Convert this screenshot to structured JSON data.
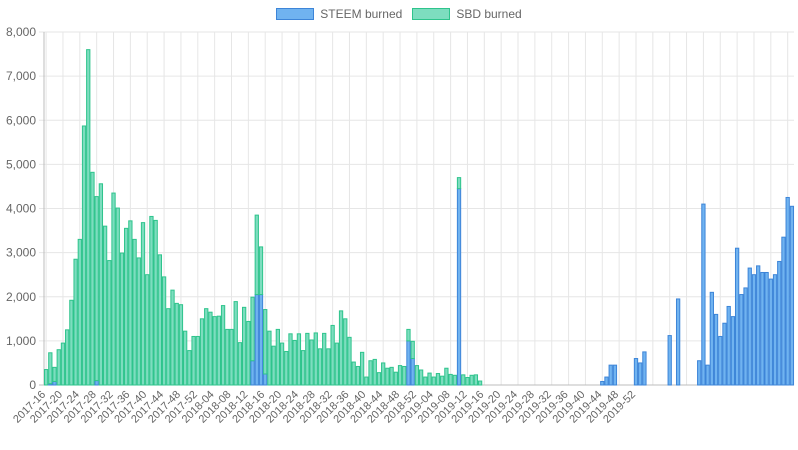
{
  "chart_data": {
    "type": "bar",
    "stacked": true,
    "ylim": [
      0,
      8000
    ],
    "y_ticks": [
      "0",
      "1,000",
      "2,000",
      "3,000",
      "4,000",
      "5,000",
      "6,000",
      "7,000",
      "8,000"
    ],
    "grid": true,
    "legend_position": "top-center",
    "x_tick_labels": [
      "2017-16",
      "2017-20",
      "2017-24",
      "2017-28",
      "2017-32",
      "2017-36",
      "2017-40",
      "2017-44",
      "2017-48",
      "2017-52",
      "2018-04",
      "2018-08",
      "2018-12",
      "2018-16",
      "2018-20",
      "2018-24",
      "2018-28",
      "2018-32",
      "2018-36",
      "2018-40",
      "2018-44",
      "2018-48",
      "2018-52",
      "2019-04",
      "2019-08",
      "2019-12",
      "2019-16",
      "2019-20",
      "2019-24",
      "2019-28",
      "2019-32",
      "2019-36",
      "2019-40",
      "2019-44",
      "2019-48",
      "2019-52"
    ],
    "series": [
      {
        "name": "STEEM burned",
        "color": "#70b3f0",
        "border": "#3d85d8",
        "values": [
          0,
          30,
          80,
          0,
          0,
          0,
          0,
          0,
          0,
          0,
          0,
          0,
          100,
          0,
          0,
          0,
          0,
          0,
          0,
          0,
          0,
          0,
          0,
          0,
          0,
          0,
          0,
          0,
          0,
          0,
          0,
          0,
          0,
          0,
          0,
          0,
          0,
          0,
          0,
          0,
          0,
          0,
          0,
          0,
          0,
          0,
          0,
          0,
          0,
          550,
          2050,
          2050,
          250,
          0,
          0,
          0,
          0,
          0,
          0,
          0,
          0,
          0,
          0,
          0,
          0,
          0,
          0,
          0,
          0,
          0,
          0,
          0,
          0,
          0,
          0,
          0,
          0,
          0,
          0,
          0,
          0,
          0,
          0,
          0,
          0,
          0,
          1000,
          600,
          0,
          0,
          0,
          0,
          0,
          0,
          0,
          0,
          0,
          0,
          4450,
          0,
          0,
          0,
          0,
          0,
          0,
          0,
          0,
          0,
          0,
          0,
          0,
          0,
          0,
          0,
          0,
          0,
          0,
          0,
          0,
          0,
          0,
          0,
          0,
          0,
          0,
          0,
          0,
          0,
          0,
          0,
          0,
          0,
          80,
          180,
          450,
          450,
          0,
          0,
          0,
          0,
          600,
          500,
          750,
          0,
          0,
          0,
          0,
          0,
          1120,
          0,
          1950,
          0,
          0,
          0,
          0,
          550,
          4100,
          450,
          2100,
          1600,
          1100,
          1400,
          1780,
          1550,
          3100,
          2050,
          2200,
          2650,
          2500,
          2700,
          2550,
          2550,
          2400,
          2500,
          2800,
          3350,
          4250,
          4050
        ]
      },
      {
        "name": "SBD burned",
        "color": "#7dddbf",
        "border": "#2ec48c",
        "values": [
          350,
          700,
          320,
          800,
          950,
          1250,
          1920,
          2850,
          3300,
          5870,
          7600,
          4820,
          4170,
          4560,
          3600,
          2820,
          4350,
          4010,
          2990,
          3550,
          3720,
          3300,
          2880,
          3680,
          2500,
          3820,
          3730,
          2950,
          2450,
          1730,
          2150,
          1850,
          1820,
          1220,
          780,
          1100,
          1100,
          1500,
          1730,
          1650,
          1550,
          1560,
          1800,
          1260,
          1260,
          1890,
          960,
          1760,
          1440,
          1440,
          1800,
          1080,
          1460,
          1220,
          880,
          1260,
          950,
          760,
          1160,
          1010,
          1160,
          780,
          1170,
          1020,
          1180,
          820,
          1170,
          820,
          1350,
          950,
          1680,
          1500,
          1080,
          520,
          420,
          740,
          180,
          550,
          580,
          280,
          500,
          380,
          400,
          290,
          440,
          420,
          260,
          390,
          440,
          340,
          180,
          270,
          180,
          260,
          200,
          380,
          240,
          220,
          250,
          230,
          170,
          220,
          230,
          90,
          0,
          0,
          0,
          0,
          0,
          0,
          0,
          0,
          0,
          0,
          0,
          0,
          0,
          0,
          0,
          0,
          0,
          0,
          0,
          0,
          0,
          0,
          0,
          0,
          0,
          0,
          0,
          0,
          0,
          0,
          0,
          0,
          0,
          0,
          0,
          0,
          0,
          0,
          0,
          0,
          0,
          0,
          0,
          0,
          0,
          0,
          0,
          0,
          0,
          0,
          0,
          0,
          0,
          0,
          0,
          0,
          0,
          0,
          0,
          0,
          0,
          0,
          0,
          0,
          0,
          0,
          0,
          0,
          0,
          0,
          0,
          0,
          0,
          0,
          0,
          0,
          0,
          0,
          0,
          0,
          0,
          0,
          0,
          0,
          0,
          0,
          0
        ]
      }
    ]
  }
}
